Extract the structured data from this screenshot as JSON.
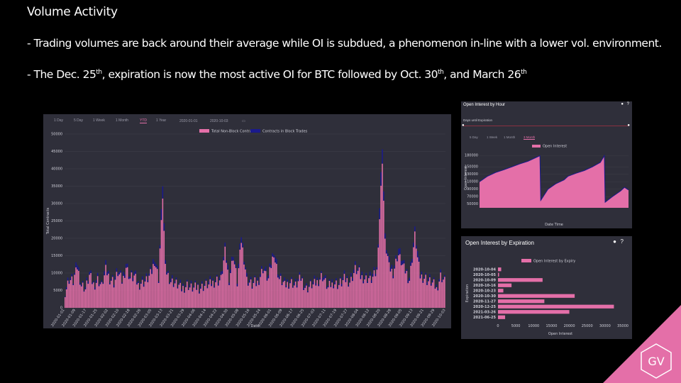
{
  "slide": {
    "title": "Volume Activity",
    "bullet1": "- Trading volumes are back around their average while OI is subdued, a phenomenon in-line with a lower vol. environment.",
    "bullet2_a": "- The Dec. 25",
    "bullet2_sup1": "th",
    "bullet2_b": ", expiration is now the most active OI for BTC followed by Oct. 30",
    "bullet2_sup2": "th",
    "bullet2_c": ", and March 26",
    "bullet2_sup3": "th"
  },
  "main_chart_controls": {
    "tabs": [
      "1 Day",
      "5 Day",
      "1 Week",
      "1 Month",
      "YTD",
      "1 Year"
    ],
    "active_tab": "YTD",
    "date_from": "2020-01-01",
    "date_to": "2020-10-03"
  },
  "hour_panel": {
    "title": "Open Interest by Hour",
    "slider_label": "Days until Expiration",
    "tabs": [
      "5 Day",
      "1 Week",
      "1 Month",
      "3 Month"
    ],
    "active_tab": "3 Month"
  },
  "exp_panel": {
    "title": "Open Interest by Expiration"
  },
  "logo_text": "GV",
  "colors": {
    "pink": "#e46fa8",
    "navy": "#1a1a8c",
    "panel": "#2f2f3a",
    "grid": "#44444f"
  },
  "chart_data": [
    {
      "type": "bar",
      "stacked": true,
      "xlabel": "Date",
      "ylabel": "Total Contracts",
      "ylim": [
        0,
        50000
      ],
      "yticks": [
        0,
        5000,
        10000,
        15000,
        20000,
        25000,
        30000,
        35000,
        40000,
        45000,
        50000
      ],
      "legend": "top-center",
      "series": [
        {
          "name": "Total Non-Block Contracts",
          "color": "#e46fa8"
        },
        {
          "name": "Contracts in Block Trades",
          "color": "#1a1a8c"
        }
      ],
      "anchors": [
        [
          0,
          5000
        ],
        [
          3,
          9000
        ],
        [
          6,
          8000
        ],
        [
          9,
          13000
        ],
        [
          12,
          7000
        ],
        [
          15,
          6000
        ],
        [
          18,
          10000
        ],
        [
          21,
          7000
        ],
        [
          24,
          9000
        ],
        [
          27,
          6500
        ],
        [
          30,
          12000
        ],
        [
          33,
          9000
        ],
        [
          36,
          8000
        ],
        [
          39,
          11000
        ],
        [
          42,
          8000
        ],
        [
          45,
          13000
        ],
        [
          48,
          9000
        ],
        [
          51,
          10000
        ],
        [
          54,
          7000
        ],
        [
          57,
          8000
        ],
        [
          60,
          8500
        ],
        [
          63,
          10000
        ],
        [
          66,
          15000
        ],
        [
          69,
          9000
        ],
        [
          72,
          36000
        ],
        [
          74,
          12000
        ],
        [
          77,
          9000
        ],
        [
          80,
          8000
        ],
        [
          83,
          7000
        ],
        [
          86,
          6000
        ],
        [
          90,
          7000
        ],
        [
          95,
          6000
        ],
        [
          100,
          6500
        ],
        [
          105,
          7000
        ],
        [
          110,
          8000
        ],
        [
          115,
          9000
        ],
        [
          118,
          17000
        ],
        [
          121,
          9000
        ],
        [
          124,
          16000
        ],
        [
          127,
          8000
        ],
        [
          130,
          21000
        ],
        [
          134,
          9000
        ],
        [
          138,
          7000
        ],
        [
          142,
          8000
        ],
        [
          146,
          12000
        ],
        [
          150,
          9000
        ],
        [
          154,
          17000
        ],
        [
          158,
          9000
        ],
        [
          162,
          7000
        ],
        [
          166,
          8000
        ],
        [
          170,
          7000
        ],
        [
          174,
          9000
        ],
        [
          178,
          6000
        ],
        [
          182,
          7000
        ],
        [
          186,
          8000
        ],
        [
          190,
          10000
        ],
        [
          194,
          6000
        ],
        [
          198,
          8000
        ],
        [
          202,
          7000
        ],
        [
          206,
          9000
        ],
        [
          210,
          8000
        ],
        [
          214,
          12000
        ],
        [
          218,
          10000
        ],
        [
          222,
          9000
        ],
        [
          226,
          9000
        ],
        [
          230,
          11000
        ],
        [
          234,
          47000
        ],
        [
          236,
          20000
        ],
        [
          239,
          13000
        ],
        [
          242,
          11000
        ],
        [
          246,
          17000
        ],
        [
          250,
          12000
        ],
        [
          254,
          9000
        ],
        [
          258,
          22000
        ],
        [
          262,
          10000
        ],
        [
          266,
          9000
        ],
        [
          270,
          8000
        ],
        [
          274,
          6000
        ],
        [
          277,
          10000
        ],
        [
          280,
          8000
        ]
      ],
      "x_tick_labels": [
        "2020-01-01",
        "2020-01-09",
        "2020-01-17",
        "2020-01-25",
        "2020-02-02",
        "2020-02-10",
        "2020-02-18",
        "2020-02-26",
        "2020-03-05",
        "2020-03-13",
        "2020-03-21",
        "2020-03-29",
        "2020-04-06",
        "2020-04-14",
        "2020-04-22",
        "2020-04-30",
        "2020-05-08",
        "2020-05-16",
        "2020-05-24",
        "2020-06-01",
        "2020-06-09",
        "2020-06-17",
        "2020-06-25",
        "2020-07-03",
        "2020-07-11",
        "2020-07-19",
        "2020-07-27",
        "2020-08-04",
        "2020-08-12",
        "2020-08-20",
        "2020-08-28",
        "2020-09-05",
        "2020-09-13",
        "2020-09-21",
        "2020-09-29",
        "2020-10-03"
      ]
    },
    {
      "type": "area",
      "xlabel": "Date Time",
      "ylabel": "Open Interest",
      "ylim": [
        40000,
        200000
      ],
      "yticks": [
        50000,
        70000,
        90000,
        110000,
        130000,
        150000,
        180000
      ],
      "legend": "top-center",
      "series": [
        {
          "name": "Open Interest",
          "color": "#e46fa8"
        }
      ],
      "points": [
        [
          0,
          110000
        ],
        [
          10,
          125000
        ],
        [
          20,
          135000
        ],
        [
          30,
          142000
        ],
        [
          40,
          150000
        ],
        [
          50,
          158000
        ],
        [
          60,
          165000
        ],
        [
          70,
          175000
        ],
        [
          75,
          180000
        ],
        [
          76,
          60000
        ],
        [
          85,
          90000
        ],
        [
          95,
          105000
        ],
        [
          105,
          115000
        ],
        [
          110,
          125000
        ],
        [
          120,
          133000
        ],
        [
          130,
          140000
        ],
        [
          140,
          150000
        ],
        [
          150,
          162000
        ],
        [
          155,
          180000
        ],
        [
          156,
          55000
        ],
        [
          165,
          70000
        ],
        [
          175,
          85000
        ],
        [
          180,
          95000
        ],
        [
          185,
          88000
        ]
      ]
    },
    {
      "type": "bar",
      "orientation": "horizontal",
      "xlabel": "Open Interest",
      "ylabel": "Expiration",
      "xlim": [
        0,
        35000
      ],
      "xticks": [
        0,
        5000,
        10000,
        15000,
        20000,
        25000,
        30000,
        35000
      ],
      "legend": "top-center",
      "series": [
        {
          "name": "Open Interest by Expiry",
          "color": "#e46fa8"
        }
      ],
      "categories": [
        "2020-10-04",
        "2020-10-05",
        "2020-10-09",
        "2020-10-16",
        "2020-10-23",
        "2020-10-30",
        "2020-11-27",
        "2020-12-25",
        "2021-03-26",
        "2021-06-25"
      ],
      "values": [
        900,
        300,
        12500,
        3800,
        1500,
        21500,
        13000,
        32500,
        20000,
        2000
      ]
    }
  ]
}
